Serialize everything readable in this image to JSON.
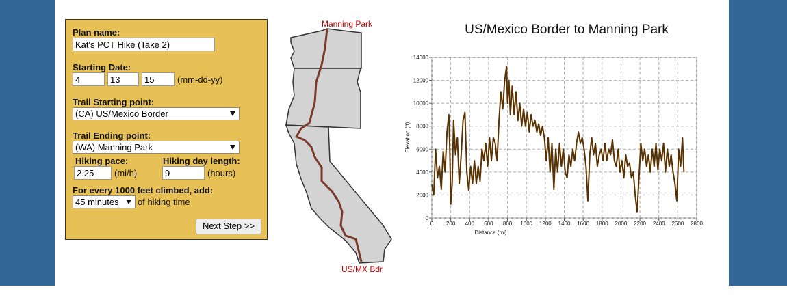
{
  "form": {
    "plan_name_label": "Plan name:",
    "plan_name": "Kat's PCT Hike (Take 2)",
    "start_date_label": "Starting Date:",
    "start_month": "4",
    "start_day": "13",
    "start_year": "15",
    "date_format": "(mm-dd-yy)",
    "start_point_label": "Trail Starting point:",
    "start_point": "(CA) US/Mexico Border",
    "end_point_label": "Trail Ending point:",
    "end_point": "(WA) Manning Park",
    "pace_label": "Hiking pace:",
    "pace": "2.25",
    "pace_unit": "(mi/h)",
    "day_length_label": "Hiking day length:",
    "day_length": "9",
    "day_length_unit": "(hours)",
    "climb_label": "For every 1000 feet climbed, add:",
    "climb_time": "45 minutes",
    "climb_suffix": "of hiking time",
    "next_button": "Next Step >>"
  },
  "map": {
    "north_label": "Manning Park",
    "south_label": "US/MX Bdr"
  },
  "chart_data": {
    "type": "line",
    "title": "US/Mexico Border to Manning Park",
    "x_label": "Distance (mi)",
    "y_label": "Elevation (ft)",
    "color": "#5a3200",
    "grid": true,
    "xlim": [
      0,
      2800
    ],
    "xticks": [
      0,
      200,
      400,
      600,
      800,
      1000,
      1200,
      1400,
      1600,
      1800,
      2000,
      2200,
      2400,
      2600,
      2800
    ],
    "ylim": [
      0,
      14000
    ],
    "yticks": [
      0,
      2000,
      4000,
      6000,
      8000,
      10000,
      12000,
      14000
    ],
    "x": [
      0,
      20,
      40,
      60,
      80,
      100,
      120,
      140,
      160,
      180,
      190,
      200,
      215,
      230,
      250,
      270,
      290,
      310,
      330,
      350,
      370,
      390,
      410,
      430,
      450,
      470,
      490,
      510,
      530,
      550,
      570,
      590,
      610,
      630,
      650,
      670,
      690,
      710,
      730,
      750,
      770,
      790,
      800,
      815,
      830,
      850,
      870,
      890,
      910,
      930,
      950,
      970,
      990,
      1010,
      1030,
      1050,
      1070,
      1090,
      1110,
      1130,
      1150,
      1170,
      1190,
      1210,
      1230,
      1250,
      1270,
      1290,
      1310,
      1330,
      1350,
      1370,
      1390,
      1410,
      1430,
      1450,
      1470,
      1490,
      1510,
      1530,
      1550,
      1570,
      1590,
      1610,
      1630,
      1650,
      1670,
      1690,
      1710,
      1730,
      1750,
      1770,
      1790,
      1810,
      1830,
      1850,
      1870,
      1890,
      1910,
      1930,
      1950,
      1970,
      1990,
      2010,
      2030,
      2050,
      2070,
      2090,
      2110,
      2130,
      2150,
      2170,
      2190,
      2210,
      2230,
      2250,
      2270,
      2290,
      2310,
      2330,
      2350,
      2370,
      2390,
      2410,
      2430,
      2450,
      2470,
      2490,
      2510,
      2530,
      2550,
      2570,
      2590,
      2610,
      2630,
      2650,
      2665
    ],
    "values": [
      2900,
      2000,
      6000,
      3500,
      4500,
      2500,
      5800,
      4000,
      7500,
      9000,
      6000,
      1200,
      3000,
      8500,
      5500,
      7000,
      3000,
      5500,
      8500,
      9200,
      4000,
      2400,
      4500,
      3000,
      5000,
      3000,
      4500,
      3200,
      6000,
      5000,
      6500,
      4500,
      7000,
      5000,
      7000,
      6500,
      5000,
      8500,
      11000,
      9500,
      12000,
      13200,
      10000,
      12000,
      9000,
      11500,
      9000,
      11000,
      8500,
      10000,
      8000,
      9500,
      8000,
      9200,
      7500,
      9000,
      8000,
      8500,
      7500,
      8200,
      7200,
      8000,
      7000,
      5000,
      7000,
      4000,
      6500,
      2500,
      6000,
      4000,
      6500,
      4500,
      6000,
      4000,
      3500,
      5500,
      4500,
      6000,
      5000,
      6500,
      7500,
      6500,
      7000,
      6000,
      4500,
      1500,
      5500,
      7000,
      5500,
      6500,
      4500,
      5500,
      6000,
      5000,
      6500,
      5000,
      6000,
      5500,
      6800,
      5000,
      4500,
      6000,
      4000,
      5000,
      3500,
      5500,
      4500,
      4800,
      3500,
      4000,
      2000,
      500,
      3500,
      6500,
      5000,
      6000,
      4500,
      5500,
      4000,
      6000,
      4500,
      6500,
      4200,
      6000,
      5000,
      6500,
      4000,
      6000,
      4500,
      5500,
      4000,
      3000,
      1500,
      6000,
      4500,
      7000,
      4000
    ]
  }
}
